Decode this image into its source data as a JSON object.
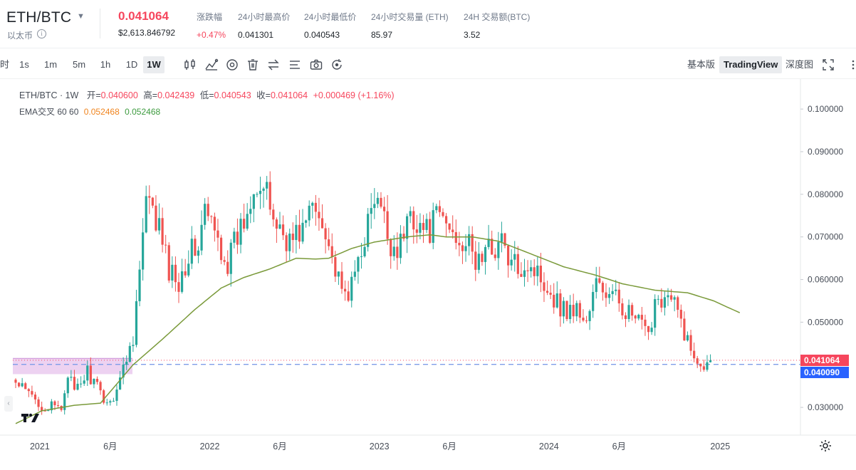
{
  "header": {
    "pair": "ETH/BTC",
    "subtitle": "以太币",
    "last_price": "0.041064",
    "last_price_usd": "$2,613.846792",
    "stats": [
      {
        "label": "涨跌幅",
        "value": "+0.47%",
        "tone": "up"
      },
      {
        "label": "24小时最高价",
        "value": "0.041301"
      },
      {
        "label": "24小时最低价",
        "value": "0.040543"
      },
      {
        "label": "24小时交易量 (ETH)",
        "value": "85.97"
      },
      {
        "label": "24H 交易额(BTC)",
        "value": "3.52"
      }
    ]
  },
  "toolbar": {
    "intervals": [
      "1s",
      "1m",
      "5m",
      "1h",
      "1D",
      "1W"
    ],
    "active_interval": "1W",
    "icons": [
      "candle-type-icon",
      "indicators-icon",
      "settings-circle-icon",
      "trash-icon",
      "swap-icon",
      "drawing-list-icon",
      "camera-icon",
      "replay-icon"
    ],
    "views": [
      "基本版",
      "TradingView",
      "深度图"
    ],
    "active_view": "TradingView"
  },
  "legend": {
    "symbol": "ETH/BTC · 1W",
    "open_label": "开=",
    "open": "0.040600",
    "high_label": "高=",
    "high": "0.042439",
    "low_label": "低=",
    "low": "0.040543",
    "close_label": "收=",
    "close": "0.041064",
    "change": "+0.000469 (+1.16%)",
    "indicator": "EMA交叉 60 60",
    "ema1": "0.052468",
    "ema2": "0.052468"
  },
  "colors": {
    "up": "#26a69a",
    "down": "#ef5350",
    "ema": "#7a9a3a",
    "last_price_tag": "#f6465d",
    "mark_price_tag": "#2962ff"
  },
  "chart_data": {
    "type": "candlestick",
    "symbol": "ETH/BTC",
    "interval": "1W",
    "y_ticks": [
      "0.100000",
      "0.090000",
      "0.080000",
      "0.070000",
      "0.060000",
      "0.050000",
      "0.030000"
    ],
    "ylim": [
      0.0235,
      0.1037
    ],
    "x_ticks": [
      "2021",
      "6月",
      "2022",
      "6月",
      "2023",
      "6月",
      "2024",
      "6月",
      "2025"
    ],
    "price_tags": [
      {
        "value": "0.041064",
        "kind": "last"
      },
      {
        "value": "0.040090",
        "kind": "mark"
      }
    ],
    "ema_anchors": [
      {
        "week": 0,
        "value": 0.0262
      },
      {
        "week": 8,
        "value": 0.0292
      },
      {
        "week": 18,
        "value": 0.0305
      },
      {
        "week": 26,
        "value": 0.031
      },
      {
        "week": 31,
        "value": 0.0355
      },
      {
        "week": 36,
        "value": 0.04
      },
      {
        "week": 45,
        "value": 0.046
      },
      {
        "week": 55,
        "value": 0.053
      },
      {
        "week": 63,
        "value": 0.058
      },
      {
        "week": 70,
        "value": 0.0605
      },
      {
        "week": 78,
        "value": 0.0625
      },
      {
        "week": 86,
        "value": 0.065
      },
      {
        "week": 92,
        "value": 0.0648
      },
      {
        "week": 96,
        "value": 0.065
      },
      {
        "week": 103,
        "value": 0.0673
      },
      {
        "week": 110,
        "value": 0.0688
      },
      {
        "week": 120,
        "value": 0.07
      },
      {
        "week": 127,
        "value": 0.0705
      },
      {
        "week": 132,
        "value": 0.07
      },
      {
        "week": 140,
        "value": 0.07
      },
      {
        "week": 148,
        "value": 0.069
      },
      {
        "week": 158,
        "value": 0.066
      },
      {
        "week": 168,
        "value": 0.063
      },
      {
        "week": 178,
        "value": 0.061
      },
      {
        "week": 186,
        "value": 0.059
      },
      {
        "week": 196,
        "value": 0.0575
      },
      {
        "week": 206,
        "value": 0.0569
      },
      {
        "week": 214,
        "value": 0.055
      },
      {
        "week": 222,
        "value": 0.0522
      }
    ],
    "price_anchors": [
      {
        "week": 0,
        "value": 0.0355
      },
      {
        "week": 4,
        "value": 0.033
      },
      {
        "week": 9,
        "value": 0.03
      },
      {
        "week": 14,
        "value": 0.0298
      },
      {
        "week": 16,
        "value": 0.0385
      },
      {
        "week": 18,
        "value": 0.033
      },
      {
        "week": 22,
        "value": 0.0385
      },
      {
        "week": 26,
        "value": 0.033
      },
      {
        "week": 29,
        "value": 0.031
      },
      {
        "week": 33,
        "value": 0.039
      },
      {
        "week": 36,
        "value": 0.047
      },
      {
        "week": 38,
        "value": 0.062
      },
      {
        "week": 40,
        "value": 0.078
      },
      {
        "week": 44,
        "value": 0.072
      },
      {
        "week": 47,
        "value": 0.062
      },
      {
        "week": 50,
        "value": 0.06
      },
      {
        "week": 53,
        "value": 0.066
      },
      {
        "week": 56,
        "value": 0.068
      },
      {
        "week": 58,
        "value": 0.076
      },
      {
        "week": 62,
        "value": 0.069
      },
      {
        "week": 65,
        "value": 0.064
      },
      {
        "week": 68,
        "value": 0.07
      },
      {
        "week": 71,
        "value": 0.076
      },
      {
        "week": 73,
        "value": 0.084
      },
      {
        "week": 76,
        "value": 0.081
      },
      {
        "week": 80,
        "value": 0.073
      },
      {
        "week": 84,
        "value": 0.069
      },
      {
        "week": 88,
        "value": 0.072
      },
      {
        "week": 91,
        "value": 0.077
      },
      {
        "week": 95,
        "value": 0.073
      },
      {
        "week": 97,
        "value": 0.065
      },
      {
        "week": 100,
        "value": 0.056
      },
      {
        "week": 103,
        "value": 0.058
      },
      {
        "week": 106,
        "value": 0.068
      },
      {
        "week": 110,
        "value": 0.078
      },
      {
        "week": 112,
        "value": 0.076
      },
      {
        "week": 115,
        "value": 0.068
      },
      {
        "week": 118,
        "value": 0.068
      },
      {
        "week": 121,
        "value": 0.076
      },
      {
        "week": 126,
        "value": 0.071
      },
      {
        "week": 130,
        "value": 0.075
      },
      {
        "week": 134,
        "value": 0.071
      },
      {
        "week": 138,
        "value": 0.069
      },
      {
        "week": 141,
        "value": 0.064
      },
      {
        "week": 145,
        "value": 0.067
      },
      {
        "week": 149,
        "value": 0.069
      },
      {
        "week": 152,
        "value": 0.063
      },
      {
        "week": 157,
        "value": 0.064
      },
      {
        "week": 162,
        "value": 0.06
      },
      {
        "week": 165,
        "value": 0.056
      },
      {
        "week": 168,
        "value": 0.053
      },
      {
        "week": 172,
        "value": 0.053
      },
      {
        "week": 175,
        "value": 0.05
      },
      {
        "week": 178,
        "value": 0.059
      },
      {
        "week": 182,
        "value": 0.056
      },
      {
        "week": 185,
        "value": 0.055
      },
      {
        "week": 188,
        "value": 0.052
      },
      {
        "week": 192,
        "value": 0.049
      },
      {
        "week": 194,
        "value": 0.046
      },
      {
        "week": 196,
        "value": 0.056
      },
      {
        "week": 199,
        "value": 0.056
      },
      {
        "week": 202,
        "value": 0.054
      },
      {
        "week": 205,
        "value": 0.048
      },
      {
        "week": 207,
        "value": 0.043
      },
      {
        "week": 210,
        "value": 0.041
      },
      {
        "week": 212,
        "value": 0.0406
      },
      {
        "week": 213,
        "value": 0.0411
      }
    ]
  }
}
